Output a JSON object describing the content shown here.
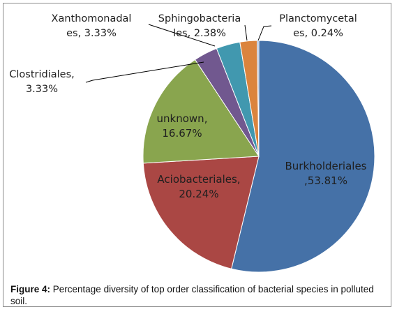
{
  "chart_data": {
    "type": "pie",
    "slices": [
      {
        "name": "Burkholderiales",
        "value": 53.81,
        "label_lines": [
          "Burkholderiales",
          ",53.81%"
        ],
        "color": "#4571A7"
      },
      {
        "name": "Aciobacteriales",
        "value": 20.24,
        "label_lines": [
          "Aciobacteriales,",
          "20.24%"
        ],
        "color": "#AA4744"
      },
      {
        "name": "unknown",
        "value": 16.67,
        "label_lines": [
          "unknown,",
          "16.67%"
        ],
        "color": "#89A54E"
      },
      {
        "name": "Clostridiales",
        "value": 3.33,
        "label_lines": [
          "Clostridiales,",
          "3.33%"
        ],
        "color": "#71588F"
      },
      {
        "name": "Xanthomonadales",
        "value": 3.33,
        "label_lines": [
          "Xanthomonadal",
          "es, 3.33%"
        ],
        "color": "#4198AF"
      },
      {
        "name": "Sphingobacteriales",
        "value": 2.38,
        "label_lines": [
          "Sphingobacteria",
          "les, 2.38%"
        ],
        "color": "#DB843D"
      },
      {
        "name": "Planctomycetales",
        "value": 0.24,
        "label_lines": [
          "Planctomycetal",
          "es, 0.24%"
        ],
        "color": "#93A9CF"
      }
    ]
  },
  "caption": {
    "prefix": "Figure 4:",
    "text": " Percentage diversity of top order classification of bacterial species in polluted soil."
  }
}
